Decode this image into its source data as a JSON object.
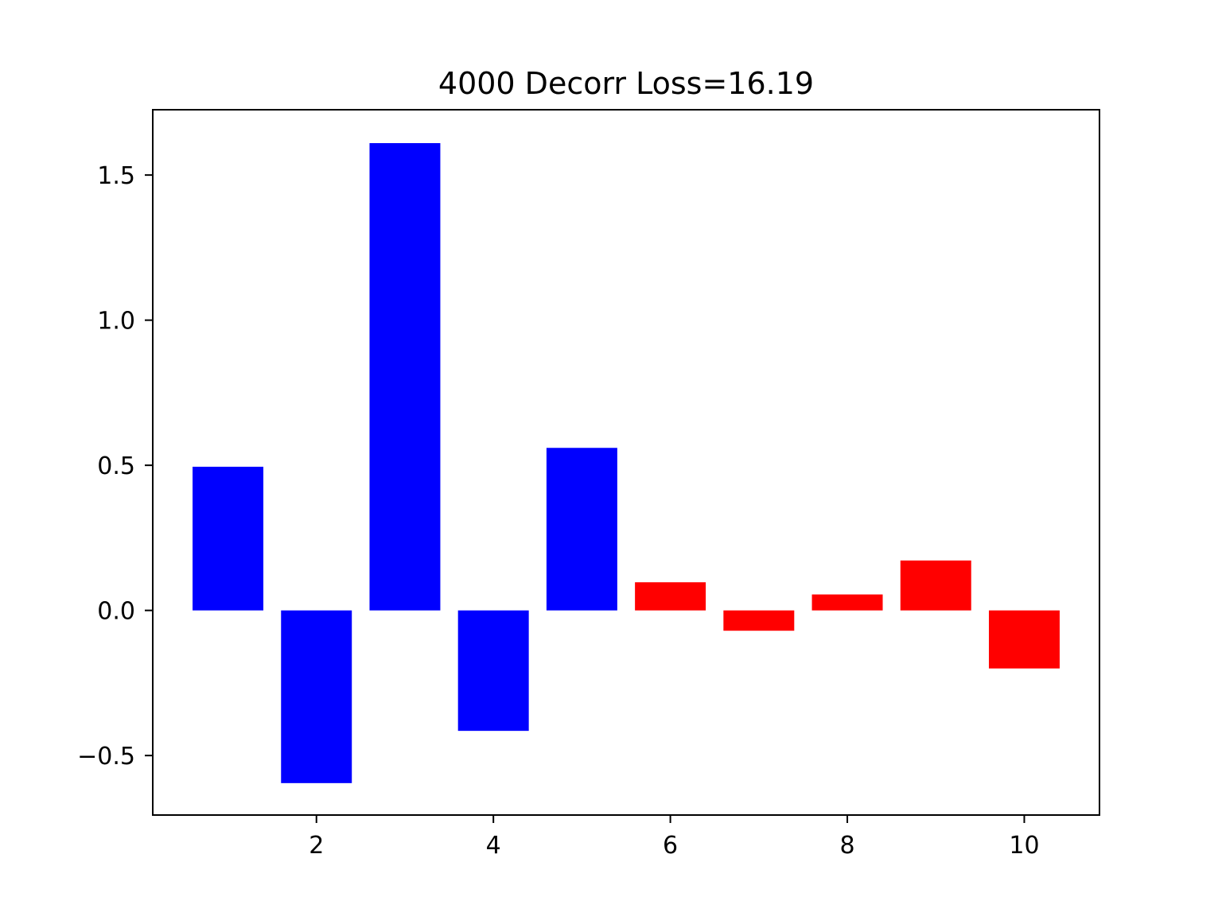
{
  "chart_data": {
    "type": "bar",
    "title": "4000 Decorr Loss=16.19",
    "xlabel": "",
    "ylabel": "",
    "x": [
      1,
      2,
      3,
      4,
      5,
      6,
      7,
      8,
      9,
      10
    ],
    "values": [
      0.495,
      -0.595,
      1.61,
      -0.415,
      0.56,
      0.097,
      -0.07,
      0.055,
      0.172,
      -0.2
    ],
    "colors": [
      "#0000ff",
      "#0000ff",
      "#0000ff",
      "#0000ff",
      "#0000ff",
      "#ff0000",
      "#ff0000",
      "#ff0000",
      "#ff0000",
      "#ff0000"
    ],
    "xlim": [
      0.15,
      10.85
    ],
    "ylim": [
      -0.705,
      1.725
    ],
    "xticks": [
      2,
      4,
      6,
      8,
      10
    ],
    "xtick_labels": [
      "2",
      "4",
      "6",
      "8",
      "10"
    ],
    "yticks": [
      -0.5,
      0.0,
      0.5,
      1.0,
      1.5
    ],
    "ytick_labels": [
      "−0.5",
      "0.0",
      "0.5",
      "1.0",
      "1.5"
    ],
    "grid": false,
    "legend": "none"
  }
}
